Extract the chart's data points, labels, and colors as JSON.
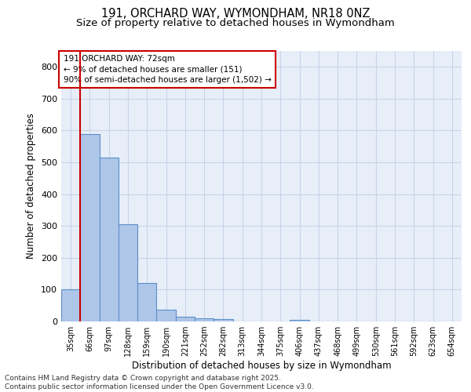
{
  "title_line1": "191, ORCHARD WAY, WYMONDHAM, NR18 0NZ",
  "title_line2": "Size of property relative to detached houses in Wymondham",
  "xlabel": "Distribution of detached houses by size in Wymondham",
  "ylabel": "Number of detached properties",
  "categories": [
    "35sqm",
    "66sqm",
    "97sqm",
    "128sqm",
    "159sqm",
    "190sqm",
    "221sqm",
    "252sqm",
    "282sqm",
    "313sqm",
    "344sqm",
    "375sqm",
    "406sqm",
    "437sqm",
    "468sqm",
    "499sqm",
    "530sqm",
    "561sqm",
    "592sqm",
    "623sqm",
    "654sqm"
  ],
  "values": [
    102,
    590,
    515,
    305,
    120,
    38,
    15,
    10,
    7,
    0,
    0,
    0,
    5,
    0,
    0,
    0,
    0,
    0,
    0,
    0,
    0
  ],
  "bar_color": "#aec6e8",
  "bar_edgecolor": "#5b8fc9",
  "bar_linewidth": 0.8,
  "redline_bin_index": 1,
  "annotation_text": "191 ORCHARD WAY: 72sqm\n← 9% of detached houses are smaller (151)\n90% of semi-detached houses are larger (1,502) →",
  "annotation_box_color": "#ffffff",
  "annotation_box_edgecolor": "#cc0000",
  "annotation_fontsize": 7.5,
  "redline_color": "#cc0000",
  "ylim": [
    0,
    850
  ],
  "yticks": [
    0,
    100,
    200,
    300,
    400,
    500,
    600,
    700,
    800
  ],
  "grid_color": "#c8d4e8",
  "background_color": "#e8eef8",
  "footer_text": "Contains HM Land Registry data © Crown copyright and database right 2025.\nContains public sector information licensed under the Open Government Licence v3.0.",
  "title_fontsize": 10.5,
  "subtitle_fontsize": 9.5,
  "xlabel_fontsize": 8.5,
  "ylabel_fontsize": 8.5,
  "footer_fontsize": 6.5
}
